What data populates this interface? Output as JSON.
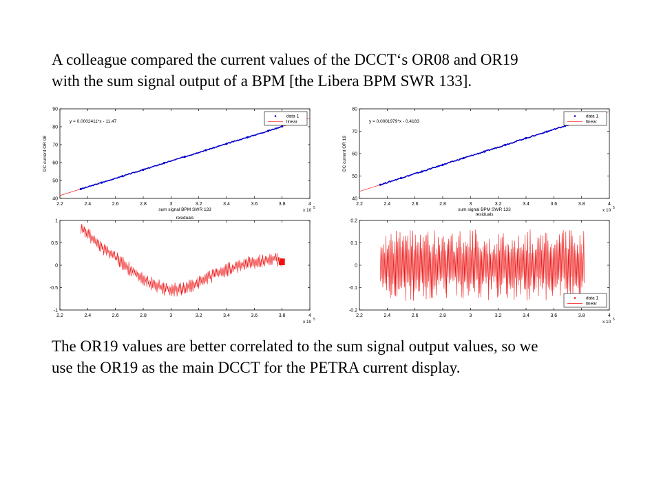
{
  "text": {
    "top_lines": [
      "A colleague compared the current values of the  DCCT‘s OR08 and OR19",
      "with the sum signal output of a BPM [the Libera BPM SWR 133]."
    ],
    "bottom_lines": [
      "The OR19 values are better correlated to the sum signal output values, so we",
      "use the OR19 as the main DCCT for the PETRA current display."
    ]
  },
  "chart_data": [
    {
      "type": "scatter",
      "equation": "y = 0.0002411*x - 11.47",
      "xlabel": "sum signal BPM SWR 133",
      "ylabel": "DC current OR 08",
      "x_exponent": "x 10",
      "x_exponent_power": "5",
      "xlim": [
        220000,
        400000
      ],
      "ylim": [
        40,
        90
      ],
      "xticks": [
        "2.2",
        "2.4",
        "2.6",
        "2.8",
        "3",
        "3.2",
        "3.4",
        "3.6",
        "3.8",
        "4"
      ],
      "yticks": [
        "40",
        "50",
        "60",
        "70",
        "80",
        "90"
      ],
      "legend_position": "top-right",
      "legend": [
        "data 1",
        "linear"
      ],
      "series": [
        {
          "name": "data 1",
          "color": "#0000cc",
          "x": [
            235000,
            250000,
            265000,
            280000,
            295000,
            310000,
            325000,
            340000,
            355000,
            370000,
            380000
          ],
          "y": [
            45.2,
            48.8,
            52.4,
            56.0,
            59.7,
            63.3,
            66.9,
            70.5,
            74.1,
            77.7,
            80.2
          ]
        },
        {
          "name": "linear",
          "color": "#ff3333",
          "x": [
            220000,
            400000
          ],
          "y": [
            41.6,
            84.97
          ]
        }
      ]
    },
    {
      "type": "scatter",
      "equation": "y = 0.0001979*x - 0.4183",
      "xlabel": "sum signal BPM SWR 133",
      "ylabel": "DC current OR 19",
      "title_below": "residuals",
      "x_exponent": "x 10",
      "x_exponent_power": "5",
      "xlim": [
        220000,
        400000
      ],
      "ylim": [
        40,
        80
      ],
      "xticks": [
        "2.2",
        "2.4",
        "2.6",
        "2.8",
        "3",
        "3.2",
        "3.4",
        "3.6",
        "3.8",
        "4"
      ],
      "yticks": [
        "40",
        "50",
        "60",
        "70",
        "80"
      ],
      "legend_position": "top-right",
      "legend": [
        "data 1",
        "linear"
      ],
      "series": [
        {
          "name": "data 1",
          "color": "#0000cc",
          "x": [
            235000,
            250000,
            265000,
            280000,
            295000,
            310000,
            325000,
            340000,
            355000,
            370000,
            380000
          ],
          "y": [
            46.1,
            49.1,
            52.0,
            55.0,
            58.0,
            60.9,
            63.9,
            66.9,
            69.8,
            72.8,
            74.8
          ]
        },
        {
          "name": "linear",
          "color": "#ff3333",
          "x": [
            220000,
            400000
          ],
          "y": [
            43.12,
            78.74
          ]
        }
      ]
    },
    {
      "type": "line",
      "title": "residuals",
      "x_exponent": "x 10",
      "x_exponent_power": "5",
      "xlim": [
        220000,
        400000
      ],
      "ylim": [
        -1,
        1
      ],
      "xticks": [
        "2.2",
        "2.4",
        "2.6",
        "2.8",
        "3",
        "3.2",
        "3.4",
        "3.6",
        "3.8",
        "4"
      ],
      "yticks": [
        "-1",
        "-0.5",
        "0",
        "0.5",
        "1"
      ],
      "series": [
        {
          "name": "residuals",
          "color": "#ee1111",
          "x": [
            235000,
            245000,
            255000,
            265000,
            275000,
            285000,
            295000,
            305000,
            315000,
            325000,
            335000,
            345000,
            355000,
            365000,
            375000,
            380000
          ],
          "y": [
            0.85,
            0.55,
            0.3,
            0.05,
            -0.2,
            -0.4,
            -0.52,
            -0.55,
            -0.45,
            -0.3,
            -0.15,
            -0.05,
            0.05,
            0.1,
            0.15,
            0.1
          ]
        }
      ]
    },
    {
      "type": "line",
      "x_exponent": "x 10",
      "x_exponent_power": "5",
      "xlim": [
        220000,
        400000
      ],
      "ylim": [
        -0.2,
        0.2
      ],
      "xticks": [
        "2.2",
        "2.4",
        "2.6",
        "2.8",
        "3",
        "3.2",
        "3.4",
        "3.6",
        "3.8",
        "4"
      ],
      "yticks": [
        "-0.2",
        "-0.1",
        "0",
        "0.1",
        "0.2"
      ],
      "legend_position": "bottom-right",
      "legend": [
        "data 1",
        "linear"
      ],
      "series": [
        {
          "name": "data 1",
          "color": "#ee1111",
          "x": [
            235000,
            382000
          ],
          "y": [
            0.0,
            0.0
          ]
        },
        {
          "name": "linear",
          "color": "#ee1111",
          "x": [
            220000,
            400000
          ],
          "y": [
            0.0,
            0.0
          ]
        }
      ]
    }
  ]
}
